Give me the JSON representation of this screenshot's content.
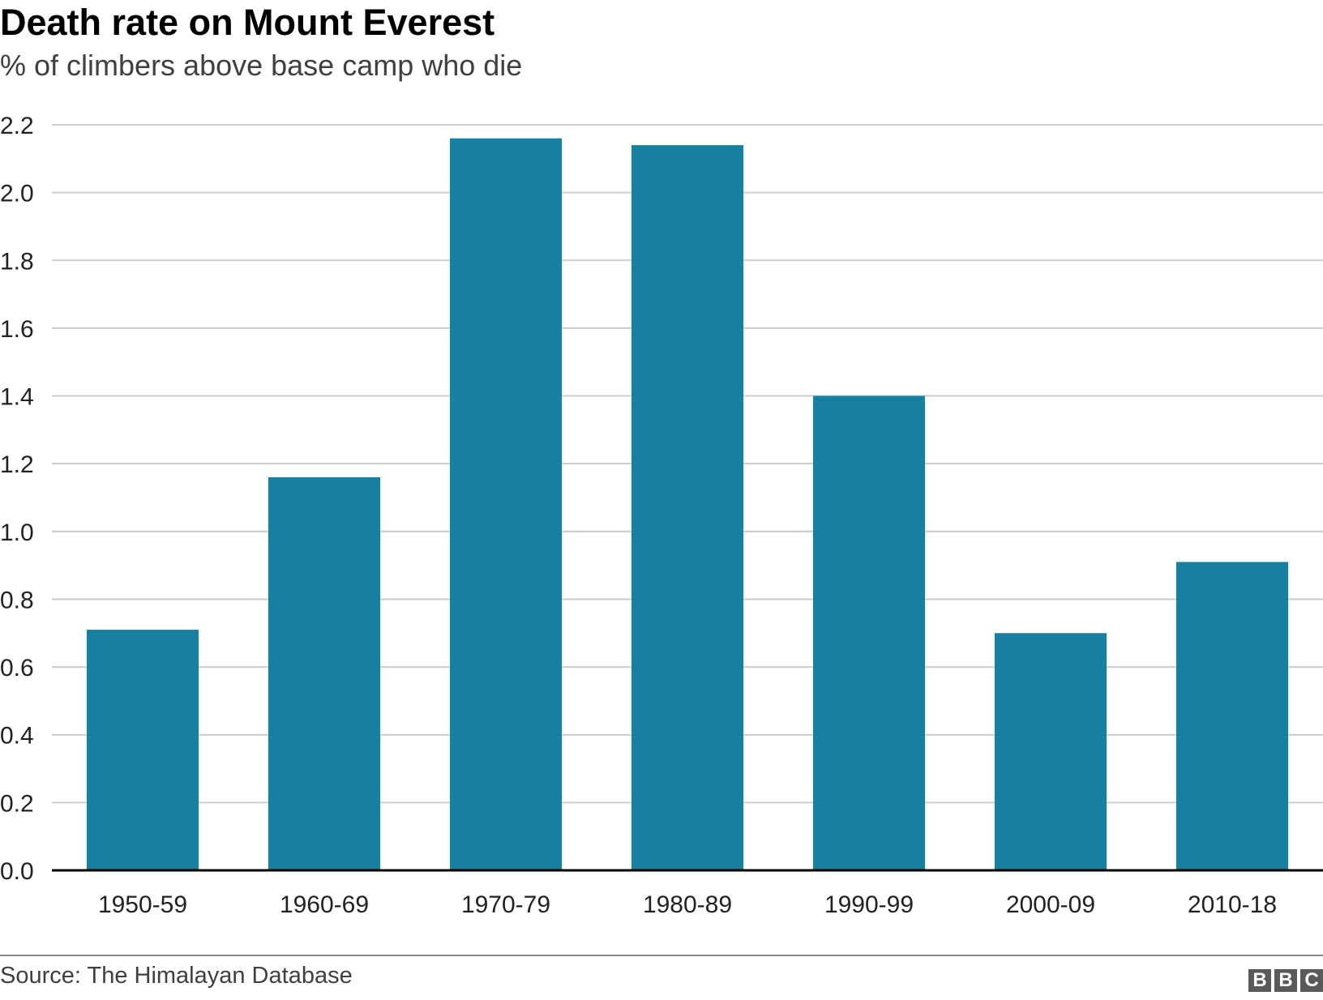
{
  "header": {
    "title": "Death rate on Mount Everest",
    "subtitle": "% of climbers above base camp who die"
  },
  "footer": {
    "source": "Source: The Himalayan Database",
    "logo": "BBC",
    "logo_letters": [
      "B",
      "B",
      "C"
    ]
  },
  "chart_data": {
    "type": "bar",
    "title": "Death rate on Mount Everest",
    "subtitle": "% of climbers above base camp who die",
    "xlabel": "",
    "ylabel": "",
    "categories": [
      "1950-59",
      "1960-69",
      "1970-79",
      "1980-89",
      "1990-99",
      "2000-09",
      "2010-18"
    ],
    "values": [
      0.71,
      1.16,
      2.16,
      2.14,
      1.4,
      0.7,
      0.91
    ],
    "ylim": [
      0,
      2.2
    ],
    "yticks": [
      "0.0",
      "0.2",
      "0.4",
      "0.6",
      "0.8",
      "1.0",
      "1.2",
      "1.4",
      "1.6",
      "1.8",
      "2.0",
      "2.2"
    ],
    "grid": true,
    "legend": "none",
    "bar_color": "#1780a1",
    "grid_color": "#cccccc",
    "baseline_color": "#000000"
  }
}
